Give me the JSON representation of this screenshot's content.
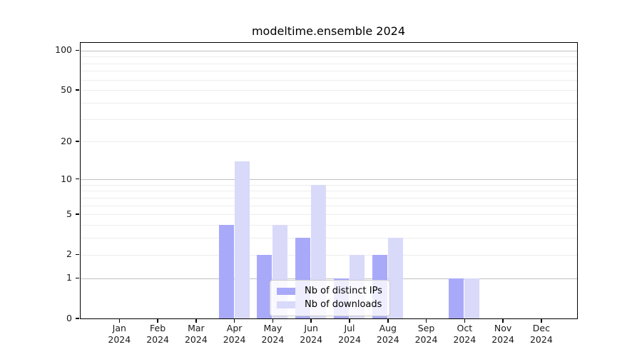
{
  "title": "modeltime.ensemble 2024",
  "chart_data": {
    "type": "bar",
    "title": "modeltime.ensemble 2024",
    "xlabel": "",
    "ylabel": "",
    "categories": [
      "Jan",
      "Feb",
      "Mar",
      "Apr",
      "May",
      "Jun",
      "Jul",
      "Aug",
      "Sep",
      "Oct",
      "Nov",
      "Dec"
    ],
    "xtick_year": "2024",
    "series": [
      {
        "name": "Nb of distinct IPs",
        "color": "#a9a9fa",
        "values": [
          0,
          0,
          0,
          4,
          2,
          3,
          1,
          2,
          0,
          1,
          0,
          0
        ]
      },
      {
        "name": "Nb of downloads",
        "color": "#d9d9fa",
        "values": [
          0,
          0,
          0,
          14,
          4,
          9,
          2,
          3,
          0,
          1,
          0,
          0
        ]
      }
    ],
    "yscale": "log1p",
    "ylim": [
      0,
      113
    ],
    "yticks": [
      0,
      1,
      2,
      5,
      10,
      20,
      50,
      100
    ],
    "major_gridlines": [
      1,
      10,
      100
    ],
    "minor_gridlines": [
      2,
      3,
      4,
      5,
      6,
      7,
      8,
      9,
      20,
      30,
      40,
      50,
      60,
      70,
      80,
      90
    ],
    "grid": true,
    "legend_position": "lower center"
  },
  "colors": {
    "background": "#ffffff",
    "frame": "#000000",
    "major_grid": "#c0c0c0",
    "minor_grid": "#ededed",
    "tick_label": "#1a1a1a",
    "legend_border": "#cccccc"
  }
}
